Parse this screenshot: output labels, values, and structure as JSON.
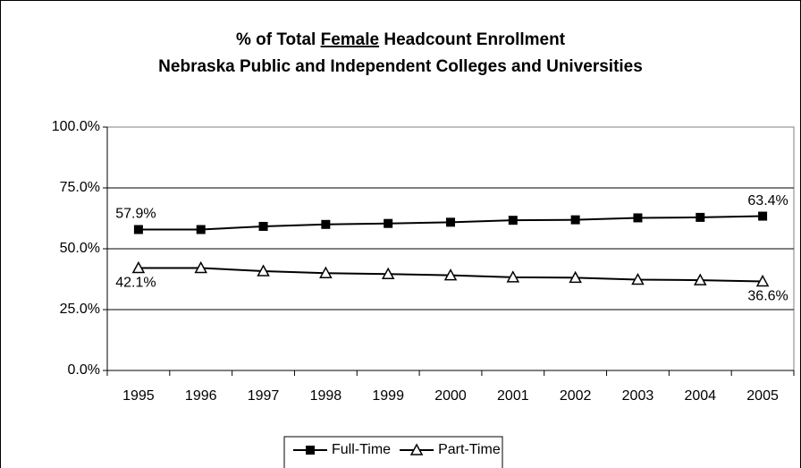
{
  "chart_data": {
    "type": "line",
    "title_parts": [
      "% of Total ",
      "Female",
      " Headcount Enrollment"
    ],
    "subtitle": "Nebraska Public and Independent Colleges and Universities",
    "categories": [
      "1995",
      "1996",
      "1997",
      "1998",
      "1999",
      "2000",
      "2001",
      "2002",
      "2003",
      "2004",
      "2005"
    ],
    "series": [
      {
        "name": "Full-Time",
        "color": "#000000",
        "marker": "square",
        "values": [
          57.9,
          57.9,
          59.2,
          60.0,
          60.4,
          60.9,
          61.7,
          61.9,
          62.7,
          62.9,
          63.4
        ],
        "value_labels": [
          "57.9%",
          null,
          null,
          null,
          null,
          null,
          null,
          null,
          null,
          null,
          "63.4%"
        ]
      },
      {
        "name": "Part-Time",
        "color": "#000000",
        "marker": "triangle",
        "values": [
          42.1,
          42.1,
          40.8,
          40.0,
          39.6,
          39.1,
          38.3,
          38.1,
          37.3,
          37.1,
          36.6
        ],
        "value_labels": [
          "42.1%",
          null,
          null,
          null,
          null,
          null,
          null,
          null,
          null,
          null,
          "36.6%"
        ]
      }
    ],
    "ylim": [
      0,
      100
    ],
    "yticks": [
      {
        "value": 0,
        "label": "0.0%"
      },
      {
        "value": 25,
        "label": "25.0%"
      },
      {
        "value": 50,
        "label": "50.0%"
      },
      {
        "value": 75,
        "label": "75.0%"
      },
      {
        "value": 100,
        "label": "100.0%"
      }
    ],
    "grid": true,
    "legend": "bottom"
  }
}
